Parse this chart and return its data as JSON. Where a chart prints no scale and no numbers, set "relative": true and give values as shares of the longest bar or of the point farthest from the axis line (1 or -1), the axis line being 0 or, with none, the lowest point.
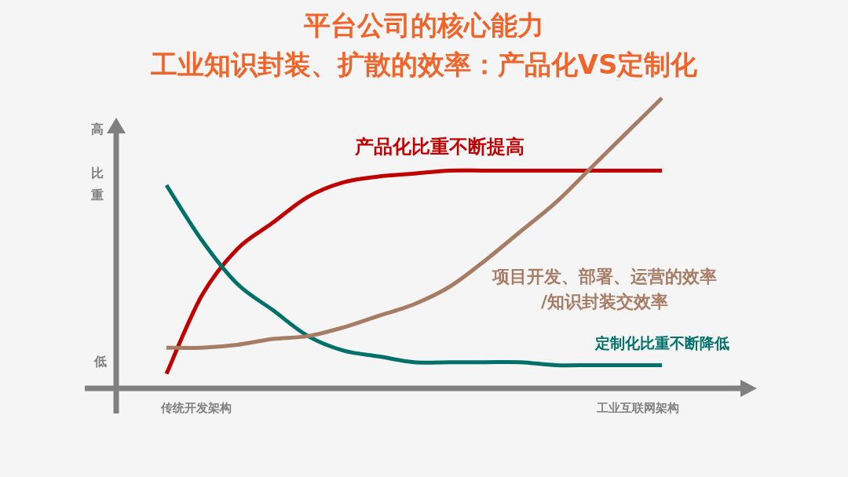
{
  "chart_data": {
    "type": "line",
    "relative": true,
    "title": "平台公司的核心能力",
    "subtitle": "工业知识封装、扩散的效率：产品化VS定制化",
    "ylabel": "比重",
    "annotations": [
      "高",
      "低",
      "传统开发架构",
      "工业互联网架构"
    ],
    "categories": [
      null,
      null,
      null,
      null,
      null,
      null,
      null,
      null,
      null,
      null,
      null,
      null,
      null,
      null,
      null
    ],
    "legend": false,
    "grid": false,
    "marker": "none",
    "line_style": "solid",
    "series": [
      {
        "name": "产品化比重不断提高",
        "color": "#c00000",
        "values": [
          0.05,
          0.32,
          0.48,
          0.57,
          0.66,
          0.71,
          0.73,
          0.74,
          0.75,
          0.75,
          0.75,
          0.75,
          0.75,
          0.75,
          0.75
        ]
      },
      {
        "name": "项目开发、部署、运营的效率/知识封装交效率",
        "color": "#a67c64",
        "values": [
          0.14,
          0.14,
          0.15,
          0.17,
          0.18,
          0.21,
          0.25,
          0.29,
          0.35,
          0.44,
          0.54,
          0.64,
          0.76,
          0.88,
          1.0
        ]
      },
      {
        "name": "定制化比重不断降低",
        "color": "#00706a",
        "values": [
          0.7,
          0.51,
          0.36,
          0.27,
          0.18,
          0.13,
          0.11,
          0.09,
          0.09,
          0.09,
          0.09,
          0.08,
          0.08,
          0.08,
          0.08
        ]
      }
    ]
  }
}
